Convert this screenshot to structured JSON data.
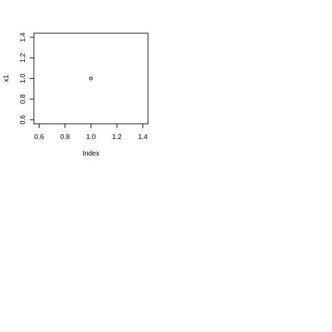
{
  "chart_data": {
    "type": "scatter",
    "title": "",
    "xlabel": "Index",
    "ylabel": "x1",
    "xlim": [
      0.56,
      1.44
    ],
    "ylim": [
      0.56,
      1.44
    ],
    "x_ticks": [
      0.6,
      0.8,
      1.0,
      1.2,
      1.4
    ],
    "x_tick_labels": [
      "0.6",
      "0.8",
      "1.0",
      "1.2",
      "1.4"
    ],
    "y_ticks": [
      0.6,
      0.8,
      1.0,
      1.2,
      1.4
    ],
    "y_tick_labels": [
      "0.6",
      "0.8",
      "1.0",
      "1.2",
      "1.4"
    ],
    "grid": false,
    "series": [
      {
        "x": [
          1.0
        ],
        "y": [
          1.0
        ]
      }
    ]
  }
}
